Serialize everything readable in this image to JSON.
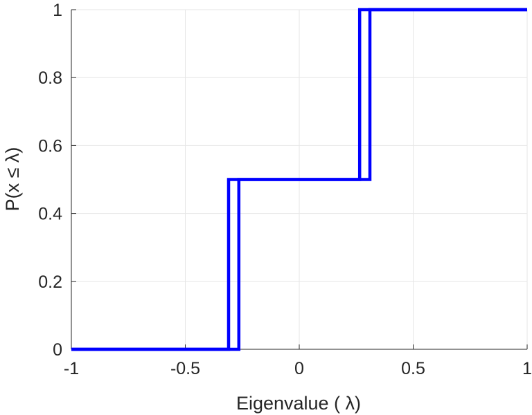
{
  "chart_data": {
    "type": "line",
    "style": "step",
    "xlabel": "Eigenvalue (   λ)",
    "ylabel": "P(x ≤ λ)",
    "xlim": [
      -1,
      1
    ],
    "ylim": [
      0,
      1
    ],
    "xticks": [
      -1,
      -0.5,
      0,
      0.5,
      1
    ],
    "xtick_labels": [
      "-1",
      "-0.5",
      "0",
      "0.5",
      "1"
    ],
    "yticks": [
      0,
      0.2,
      0.4,
      0.6,
      0.8,
      1
    ],
    "ytick_labels": [
      "0",
      "0.2",
      "0.4",
      "0.6",
      "0.8",
      "1"
    ],
    "grid": true,
    "legend": "none",
    "line_color": "#0000ff",
    "grid_color": "#e6e6e6",
    "axis_color": "#262626",
    "series": [
      {
        "x": [
          -1,
          -0.31,
          -0.31,
          0.31,
          0.31,
          1
        ],
        "y": [
          0,
          0,
          0.5,
          0.5,
          1,
          1
        ]
      },
      {
        "x": [
          -1,
          -0.265,
          -0.265,
          0.265,
          0.265,
          1
        ],
        "y": [
          0,
          0,
          0.5,
          0.5,
          1,
          1
        ]
      }
    ]
  }
}
